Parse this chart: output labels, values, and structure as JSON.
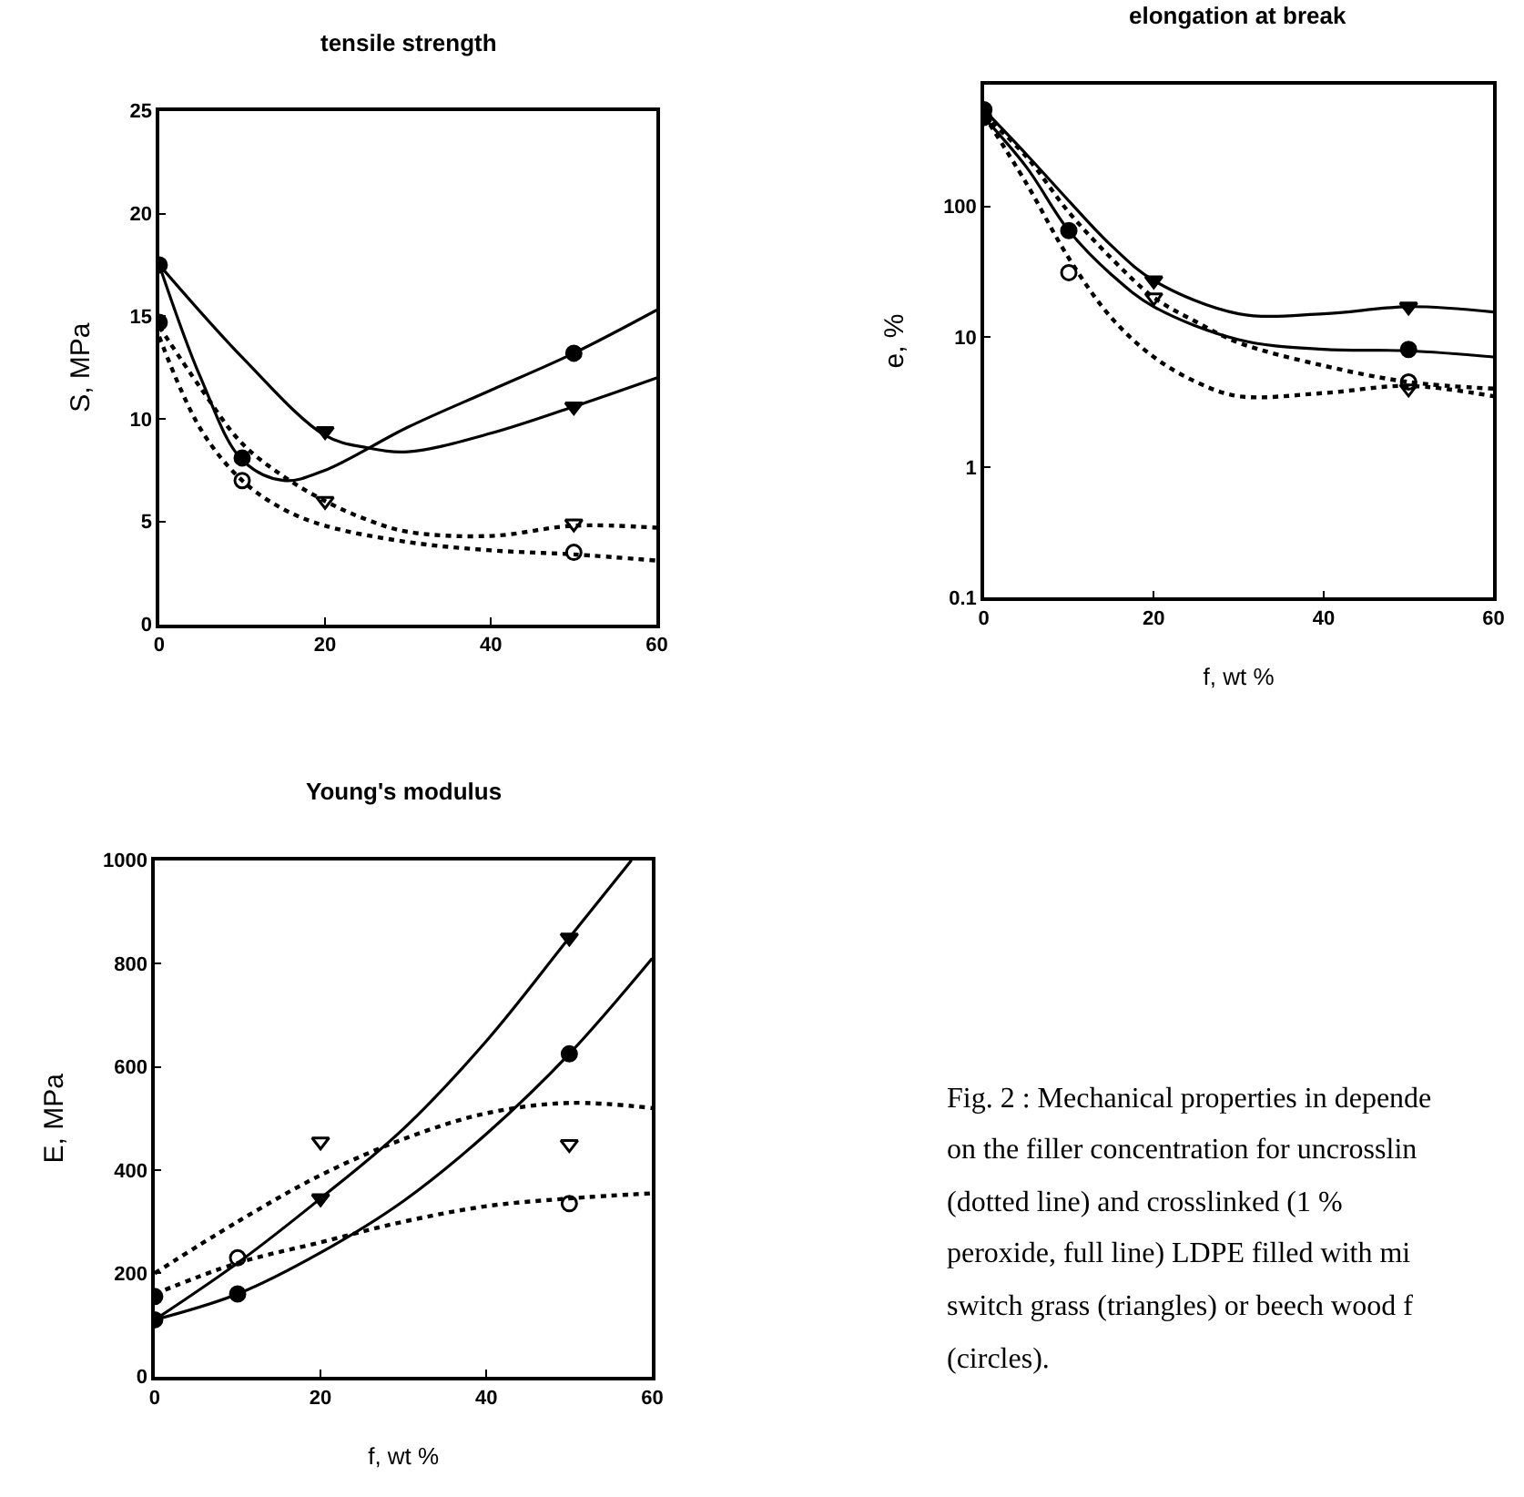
{
  "chart_data": [
    {
      "type": "line",
      "title": "tensile strength",
      "ylabel": "S, MPa",
      "xlim": [
        0,
        60
      ],
      "xticks": [
        0,
        20,
        40,
        60
      ],
      "ylim": [
        0,
        25
      ],
      "yticks": [
        0,
        5,
        10,
        15,
        20,
        25
      ],
      "series": [
        {
          "type": "line",
          "color": "#000000",
          "line_style": "solid",
          "marker": "none",
          "x": [
            0,
            5,
            10,
            15,
            20,
            30,
            40,
            50,
            60
          ],
          "values": [
            17.5,
            12,
            8.0,
            7.0,
            7.5,
            9.6,
            11.4,
            13.2,
            15.3
          ]
        },
        {
          "type": "line",
          "color": "#000000",
          "line_style": "solid",
          "marker": "none",
          "x": [
            0,
            10,
            20,
            25,
            30,
            40,
            50,
            60
          ],
          "values": [
            17.5,
            13,
            9.2,
            8.6,
            8.4,
            9.3,
            10.6,
            12.0
          ]
        },
        {
          "type": "line",
          "color": "#000000",
          "line_style": "dotted",
          "marker": "none",
          "x": [
            0,
            5,
            10,
            15,
            20,
            25,
            30,
            40,
            50,
            60
          ],
          "values": [
            14.5,
            11.5,
            8.8,
            7.2,
            6.0,
            5.1,
            4.5,
            4.3,
            4.8,
            4.7
          ]
        },
        {
          "type": "line",
          "color": "#000000",
          "line_style": "dotted",
          "marker": "none",
          "x": [
            0,
            5,
            10,
            15,
            20,
            30,
            40,
            50,
            60
          ],
          "values": [
            14.0,
            9.5,
            7.0,
            5.6,
            4.8,
            4.0,
            3.6,
            3.4,
            3.1
          ]
        },
        {
          "type": "scatter",
          "color": "#000000",
          "marker": "circle",
          "x": [
            0,
            10,
            50
          ],
          "values": [
            17.5,
            8.1,
            13.2
          ]
        },
        {
          "type": "scatter",
          "color": "#000000",
          "marker": "triangle",
          "x": [
            20,
            50
          ],
          "values": [
            9.4,
            10.6
          ]
        },
        {
          "type": "scatter",
          "color": "#000000",
          "marker": "triangle-open",
          "x": [
            20,
            50
          ],
          "values": [
            6.0,
            4.9
          ]
        },
        {
          "type": "scatter",
          "color": "#000000",
          "marker": "circle-open",
          "x": [
            10,
            50
          ],
          "values": [
            7.0,
            3.5
          ]
        },
        {
          "type": "scatter",
          "color": "#000000",
          "marker": "circle",
          "x": [
            0
          ],
          "values": [
            14.7
          ]
        }
      ]
    },
    {
      "type": "line",
      "title": "elongation at break",
      "xlabel": "f, wt %",
      "ylabel": "e, %",
      "log": "y",
      "xlim": [
        0,
        60
      ],
      "xticks": [
        0,
        20,
        40,
        60
      ],
      "ylim": [
        0.1,
        860
      ],
      "yticks": [
        0.1,
        1,
        10,
        100
      ],
      "series": [
        {
          "type": "line",
          "color": "#000000",
          "line_style": "solid",
          "marker": "none",
          "x": [
            0,
            5,
            10,
            15,
            20,
            30,
            40,
            50,
            60
          ],
          "values": [
            550,
            250,
            110,
            50,
            27,
            15,
            15,
            17,
            15.5
          ]
        },
        {
          "type": "line",
          "color": "#000000",
          "line_style": "solid",
          "marker": "none",
          "x": [
            0,
            5,
            10,
            15,
            20,
            30,
            40,
            50,
            60
          ],
          "values": [
            480,
            200,
            65,
            30,
            17,
            9.5,
            8,
            7.8,
            7
          ]
        },
        {
          "type": "line",
          "color": "#000000",
          "line_style": "dotted",
          "marker": "none",
          "x": [
            0,
            5,
            10,
            15,
            20,
            25,
            30,
            40,
            50,
            60
          ],
          "values": [
            500,
            240,
            90,
            40,
            20,
            13,
            9,
            6,
            4.5,
            4
          ]
        },
        {
          "type": "line",
          "color": "#000000",
          "line_style": "dotted",
          "marker": "none",
          "x": [
            0,
            5,
            10,
            15,
            20,
            25,
            30,
            40,
            50,
            60
          ],
          "values": [
            500,
            150,
            40,
            14,
            7,
            4.5,
            3.5,
            3.7,
            4.2,
            3.5
          ]
        },
        {
          "type": "scatter",
          "color": "#000000",
          "marker": "circle",
          "x": [
            0,
            0,
            10,
            50
          ],
          "values": [
            550,
            480,
            65,
            8
          ]
        },
        {
          "type": "scatter",
          "color": "#000000",
          "marker": "triangle",
          "x": [
            20,
            50
          ],
          "values": [
            27,
            17
          ]
        },
        {
          "type": "scatter",
          "color": "#000000",
          "marker": "triangle-open",
          "x": [
            20,
            50
          ],
          "values": [
            20,
            4
          ]
        },
        {
          "type": "scatter",
          "color": "#000000",
          "marker": "circle-open",
          "x": [
            10,
            50
          ],
          "values": [
            31,
            4.5
          ]
        }
      ]
    },
    {
      "type": "line",
      "title": "Young's modulus",
      "xlabel": "f, wt %",
      "ylabel": "E, MPa",
      "xlim": [
        0,
        60
      ],
      "xticks": [
        0,
        20,
        40,
        60
      ],
      "ylim": [
        0,
        1000
      ],
      "yticks": [
        0,
        200,
        400,
        600,
        800,
        1000
      ],
      "series": [
        {
          "type": "line",
          "color": "#000000",
          "line_style": "solid",
          "marker": "none",
          "x": [
            0,
            10,
            20,
            30,
            40,
            50,
            57.5
          ],
          "values": [
            110,
            220,
            345,
            480,
            650,
            850,
            1000
          ]
        },
        {
          "type": "line",
          "color": "#000000",
          "line_style": "solid",
          "marker": "none",
          "x": [
            0,
            10,
            20,
            30,
            40,
            50,
            60
          ],
          "values": [
            110,
            160,
            240,
            340,
            470,
            625,
            810
          ]
        },
        {
          "type": "line",
          "color": "#000000",
          "line_style": "dotted",
          "marker": "none",
          "x": [
            0,
            10,
            20,
            30,
            40,
            50,
            60
          ],
          "values": [
            200,
            300,
            390,
            460,
            510,
            530,
            520
          ]
        },
        {
          "type": "line",
          "color": "#000000",
          "line_style": "dotted",
          "marker": "none",
          "x": [
            0,
            10,
            20,
            30,
            40,
            50,
            60
          ],
          "values": [
            160,
            220,
            260,
            300,
            330,
            345,
            355
          ]
        },
        {
          "type": "scatter",
          "color": "#000000",
          "marker": "circle",
          "x": [
            0,
            10,
            50
          ],
          "values": [
            110,
            160,
            625
          ]
        },
        {
          "type": "scatter",
          "color": "#000000",
          "marker": "triangle",
          "x": [
            20,
            50
          ],
          "values": [
            345,
            850
          ]
        },
        {
          "type": "scatter",
          "color": "#000000",
          "marker": "triangle-open",
          "x": [
            20,
            50
          ],
          "values": [
            455,
            450
          ]
        },
        {
          "type": "scatter",
          "color": "#000000",
          "marker": "circle-open",
          "x": [
            10,
            50
          ],
          "values": [
            230,
            335
          ]
        },
        {
          "type": "scatter",
          "color": "#000000",
          "marker": "circle",
          "x": [
            0
          ],
          "values": [
            155
          ]
        }
      ]
    },
    {
      "type": "other",
      "annotations": [
        "Fig. 2 : Mechanical properties in depende",
        "on the filler concentration for uncrosslin",
        "(dotted line) and crosslinked (1 %",
        "peroxide, full line) LDPE filled with mi",
        "switch grass (triangles) or beech wood f",
        "(circles)."
      ]
    }
  ]
}
